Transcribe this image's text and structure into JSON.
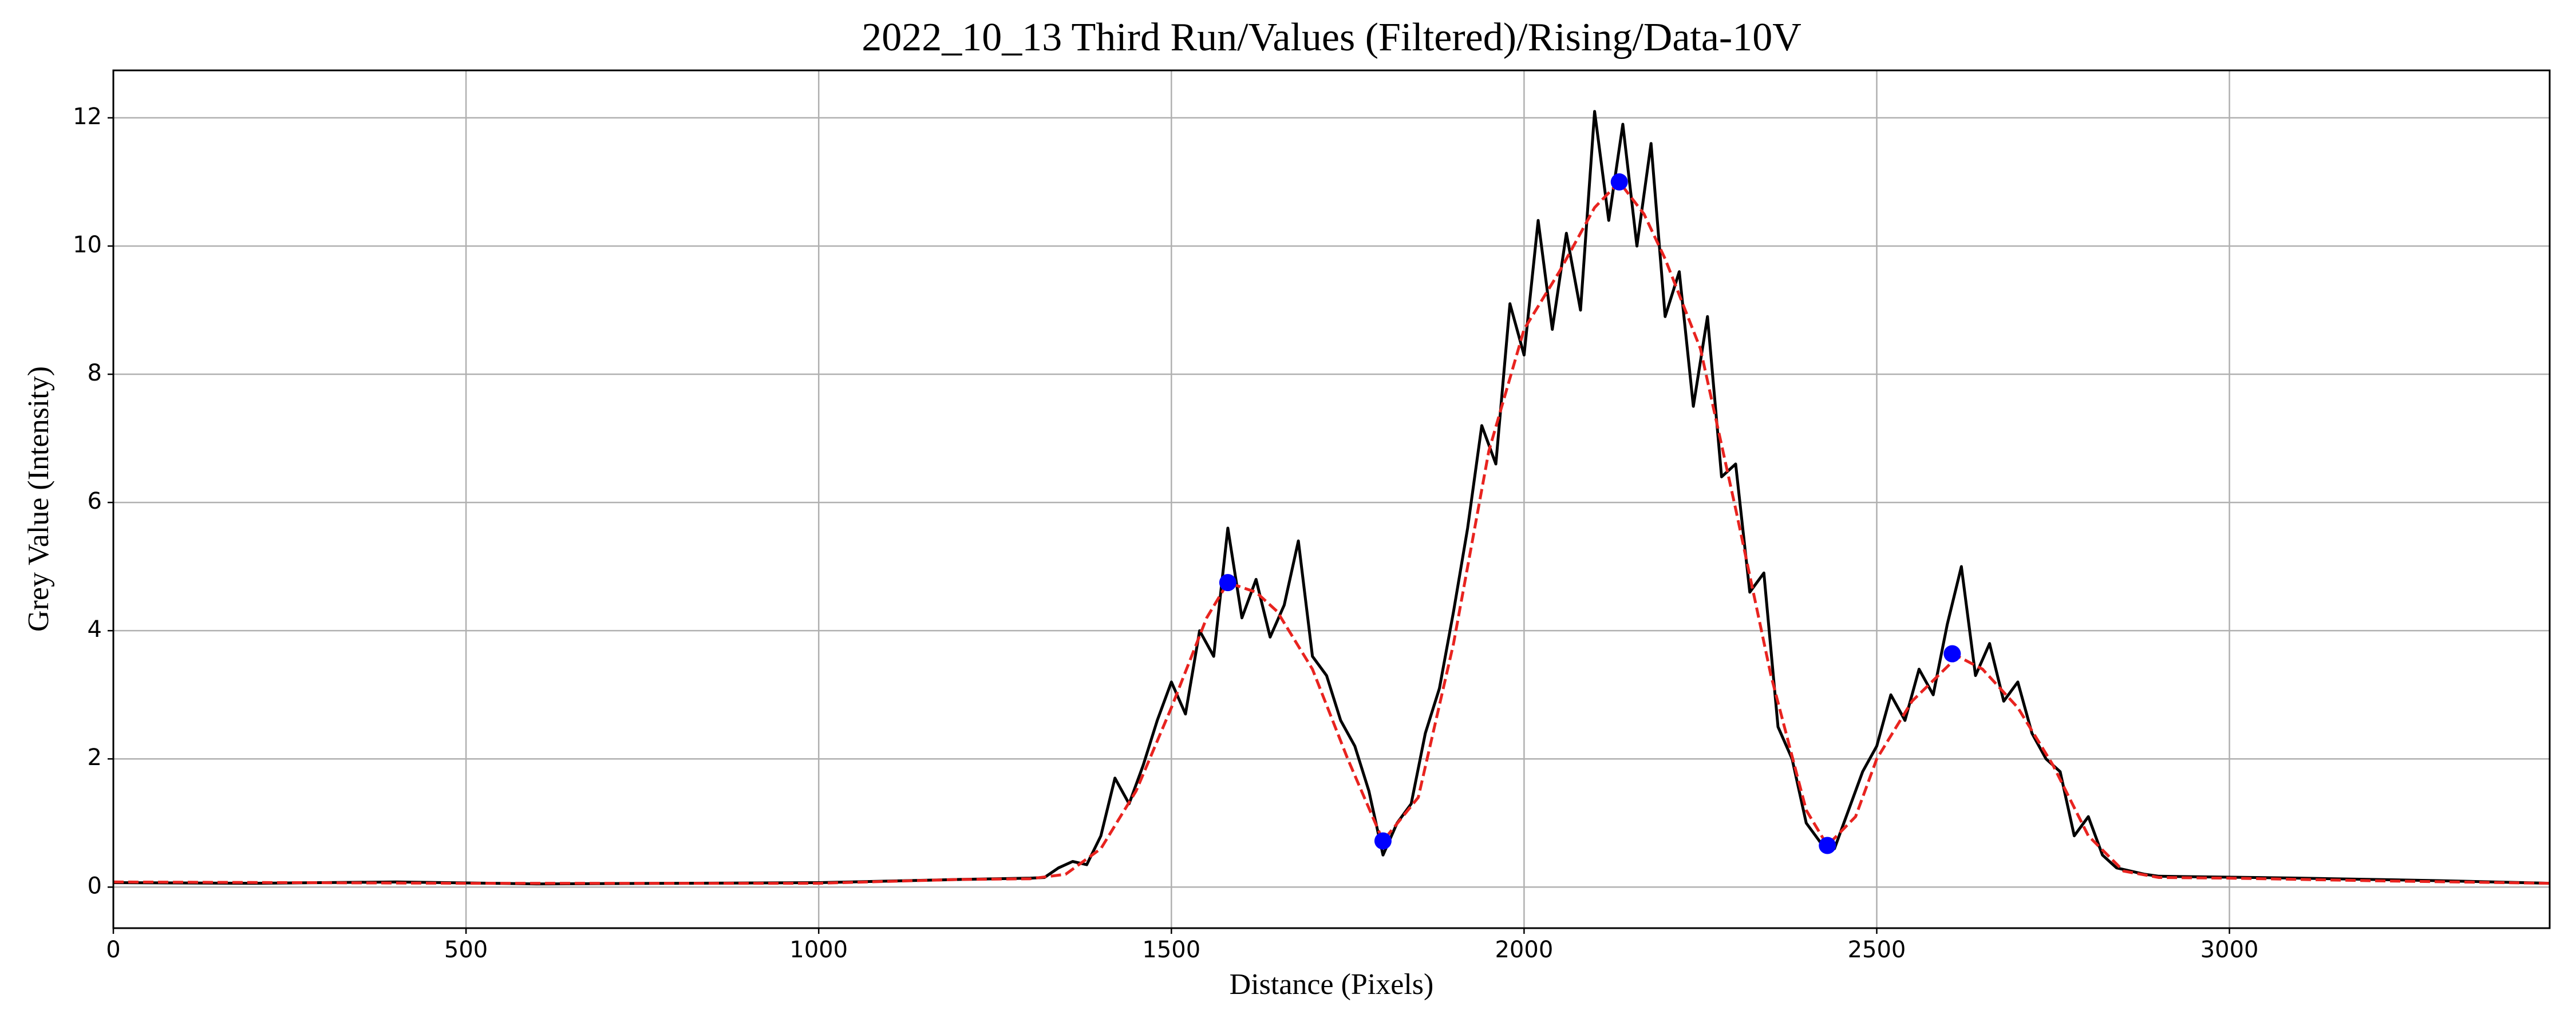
{
  "chart_data": {
    "type": "line",
    "title": "2022_10_13 Third Run/Values (Filtered)/Rising/Data-10V",
    "x_label": "Distance (Pixels)",
    "y_label": "Grey Value (Intensity)",
    "xlim": [
      0,
      3454
    ],
    "ylim": [
      -0.64,
      12.74
    ],
    "xticks": [
      0,
      500,
      1000,
      1500,
      2000,
      2500,
      3000
    ],
    "yticks": [
      0,
      2,
      4,
      6,
      8,
      10,
      12
    ],
    "grid": true,
    "series": [
      {
        "color": "#000000",
        "linestyle": "solid",
        "marker": "none",
        "x": [
          0,
          200,
          400,
          600,
          800,
          1000,
          1200,
          1300,
          1320,
          1340,
          1360,
          1380,
          1400,
          1420,
          1440,
          1460,
          1480,
          1500,
          1520,
          1540,
          1560,
          1580,
          1600,
          1620,
          1640,
          1660,
          1680,
          1700,
          1720,
          1740,
          1760,
          1780,
          1800,
          1820,
          1840,
          1860,
          1880,
          1900,
          1920,
          1940,
          1960,
          1980,
          2000,
          2020,
          2040,
          2060,
          2080,
          2100,
          2120,
          2140,
          2160,
          2180,
          2200,
          2220,
          2240,
          2260,
          2280,
          2300,
          2320,
          2340,
          2360,
          2380,
          2400,
          2420,
          2440,
          2460,
          2480,
          2500,
          2520,
          2540,
          2560,
          2580,
          2600,
          2620,
          2640,
          2660,
          2680,
          2700,
          2720,
          2740,
          2760,
          2780,
          2800,
          2820,
          2840,
          2860,
          2880,
          2900,
          3100,
          3300,
          3454
        ],
        "values": [
          0.07,
          0.06,
          0.08,
          0.05,
          0.06,
          0.07,
          0.12,
          0.14,
          0.15,
          0.3,
          0.4,
          0.35,
          0.8,
          1.7,
          1.3,
          1.9,
          2.6,
          3.2,
          2.7,
          4.0,
          3.6,
          5.6,
          4.2,
          4.8,
          3.9,
          4.4,
          5.4,
          3.6,
          3.3,
          2.6,
          2.2,
          1.5,
          0.5,
          1.0,
          1.3,
          2.4,
          3.1,
          4.3,
          5.6,
          7.2,
          6.6,
          9.1,
          8.3,
          10.4,
          8.7,
          10.2,
          9.0,
          12.1,
          10.4,
          11.9,
          10.0,
          11.6,
          8.9,
          9.6,
          7.5,
          8.9,
          6.4,
          6.6,
          4.6,
          4.9,
          2.5,
          2.0,
          1.0,
          0.7,
          0.6,
          1.2,
          1.8,
          2.2,
          3.0,
          2.6,
          3.4,
          3.0,
          4.1,
          5.0,
          3.3,
          3.8,
          2.9,
          3.2,
          2.4,
          2.0,
          1.8,
          0.8,
          1.1,
          0.5,
          0.3,
          0.25,
          0.2,
          0.17,
          0.14,
          0.1,
          0.06
        ]
      },
      {
        "color": "#e8231f",
        "linestyle": "dashed",
        "marker": "none",
        "x": [
          0,
          500,
          1000,
          1200,
          1300,
          1350,
          1400,
          1450,
          1500,
          1550,
          1580,
          1620,
          1650,
          1700,
          1750,
          1800,
          1850,
          1900,
          1950,
          2000,
          2050,
          2100,
          2135,
          2170,
          2200,
          2250,
          2300,
          2350,
          2400,
          2430,
          2470,
          2500,
          2550,
          2615,
          2650,
          2700,
          2750,
          2800,
          2850,
          2900,
          3000,
          3200,
          3454
        ],
        "values": [
          0.08,
          0.06,
          0.06,
          0.12,
          0.13,
          0.2,
          0.6,
          1.5,
          2.8,
          4.2,
          4.75,
          4.6,
          4.3,
          3.4,
          2.0,
          0.72,
          1.4,
          3.8,
          6.8,
          8.7,
          9.6,
          10.6,
          11.0,
          10.5,
          9.8,
          8.4,
          5.9,
          3.3,
          1.2,
          0.65,
          1.1,
          2.0,
          2.9,
          3.6,
          3.4,
          2.8,
          1.9,
          0.8,
          0.25,
          0.15,
          0.14,
          0.1,
          0.06
        ]
      },
      {
        "color": "#0000ff",
        "linestyle": "none",
        "marker": "o",
        "x": [
          1580,
          1800,
          2135,
          2430,
          2607
        ],
        "values": [
          4.75,
          0.72,
          11.0,
          0.65,
          3.64
        ]
      }
    ]
  }
}
